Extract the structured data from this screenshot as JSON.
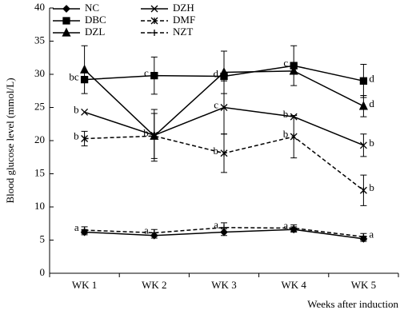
{
  "chart_data": {
    "type": "line",
    "y_label": "Blood glucose level (mmol/L)",
    "x_label": "Weeks after induction",
    "categories": [
      "WK 1",
      "WK 2",
      "WK 3",
      "WK 4",
      "WK 5"
    ],
    "ylim": [
      0,
      40
    ],
    "yticks": [
      0,
      5,
      10,
      15,
      20,
      25,
      30,
      35,
      40
    ],
    "series": [
      {
        "name": "NC",
        "color": "#000000",
        "marker": "diamond",
        "dashed": false,
        "values": [
          6.2,
          5.7,
          6.2,
          6.6,
          5.2
        ],
        "errors": [
          0.4,
          0.4,
          0.5,
          0.4,
          0.4
        ],
        "letters": [
          null,
          null,
          null,
          null,
          null
        ]
      },
      {
        "name": "DBC",
        "color": "#000000",
        "marker": "square",
        "dashed": false,
        "values": [
          29.2,
          29.8,
          29.7,
          31.3,
          29.0
        ],
        "errors": [
          null,
          2.8,
          null,
          3.0,
          2.5
        ],
        "letters": [
          "bc",
          "c",
          "d",
          "c",
          "d"
        ]
      },
      {
        "name": "DZL",
        "color": "#000000",
        "marker": "triangle",
        "dashed": false,
        "values": [
          30.7,
          20.7,
          30.3,
          30.5,
          25.2
        ],
        "errors": [
          3.6,
          null,
          3.2,
          null,
          1.6
        ],
        "letters": [
          null,
          null,
          null,
          null,
          "d"
        ]
      },
      {
        "name": "DZH",
        "color": "#000000",
        "marker": "x",
        "dashed": false,
        "values": [
          24.3,
          20.8,
          25.0,
          23.6,
          19.3
        ],
        "errors": [
          null,
          3.9,
          4.0,
          null,
          1.7
        ],
        "letters": [
          "b",
          "b",
          "c",
          "b",
          "b"
        ]
      },
      {
        "name": "DMF",
        "color": "#000000",
        "marker": "asterisk",
        "dashed": true,
        "values": [
          20.3,
          20.7,
          18.1,
          20.6,
          12.5
        ],
        "errors": [
          1.1,
          3.4,
          2.9,
          3.2,
          2.3
        ],
        "letters": [
          "b",
          null,
          "b",
          "b",
          "b"
        ]
      },
      {
        "name": "NZT",
        "color": "#000000",
        "marker": "plus",
        "dashed": true,
        "values": [
          6.5,
          6.1,
          6.9,
          6.8,
          5.5
        ],
        "errors": [
          0.5,
          0.5,
          0.7,
          0.5,
          0.5
        ],
        "letters": [
          "a",
          "a",
          "a",
          "a",
          "a"
        ]
      }
    ]
  }
}
